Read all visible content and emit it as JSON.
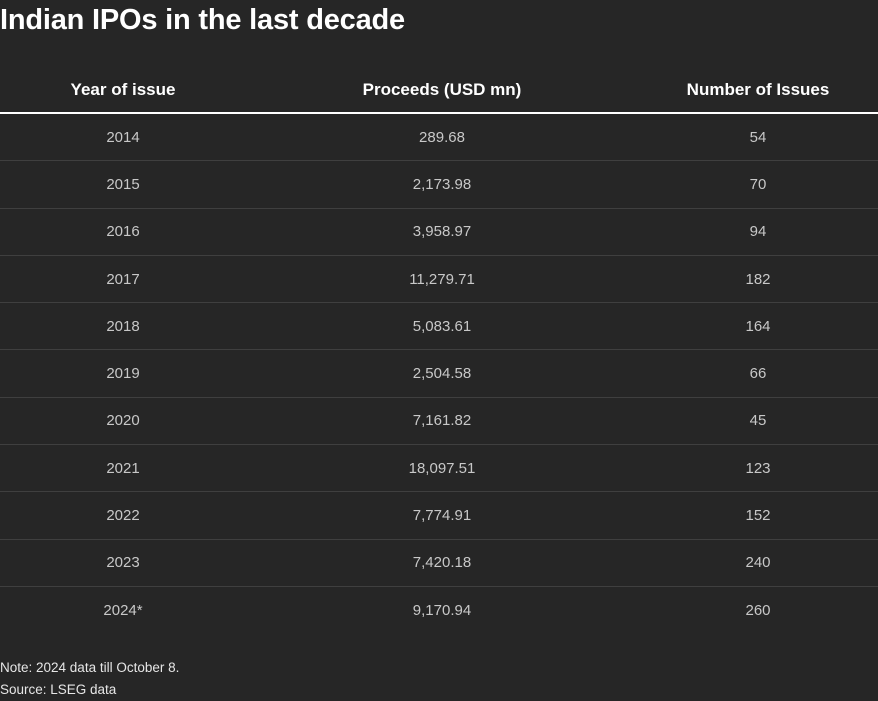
{
  "chart_data": {
    "type": "table",
    "title": "Indian IPOs in the last decade",
    "columns": [
      "Year of issue",
      "Proceeds (USD mn)",
      "Number of Issues"
    ],
    "rows": [
      [
        "2014",
        "289.68",
        "54"
      ],
      [
        "2015",
        "2,173.98",
        "70"
      ],
      [
        "2016",
        "3,958.97",
        "94"
      ],
      [
        "2017",
        "11,279.71",
        "182"
      ],
      [
        "2018",
        "5,083.61",
        "164"
      ],
      [
        "2019",
        "2,504.58",
        "66"
      ],
      [
        "2020",
        "7,161.82",
        "45"
      ],
      [
        "2021",
        "18,097.51",
        "123"
      ],
      [
        "2022",
        "7,774.91",
        "152"
      ],
      [
        "2023",
        "7,420.18",
        "240"
      ],
      [
        "2024*",
        "9,170.94",
        "260"
      ]
    ],
    "note": "Note: 2024 data till October 8.",
    "source": "Source: LSEG data"
  },
  "colors": {
    "background": "#262626",
    "header_text": "#ffffff",
    "cell_text": "#c8c8c8",
    "row_divider": "#3f3f3f"
  }
}
